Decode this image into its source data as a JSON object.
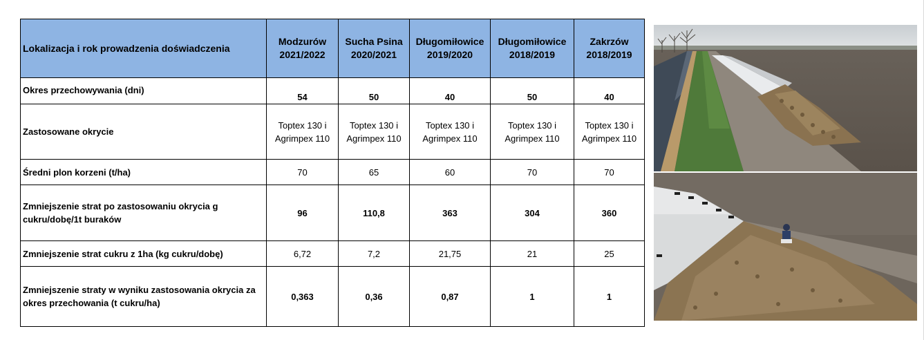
{
  "table": {
    "header_label": "Lokalizacja i rok prowadzenia doświadczenia",
    "columns": [
      {
        "name": "Modzurów",
        "years": "2021/2022"
      },
      {
        "name": "Sucha Psina",
        "years": "2020/2021"
      },
      {
        "name": "Długomiłowice",
        "years": "2019/2020"
      },
      {
        "name": "Długomiłowice",
        "years": "2018/2019"
      },
      {
        "name": "Zakrzów",
        "years": "2018/2019"
      }
    ],
    "rows": [
      {
        "label": "Okres przechowywania (dni)",
        "values": [
          "54",
          "50",
          "40",
          "50",
          "40"
        ]
      },
      {
        "label": "Zastosowane okrycie",
        "values": [
          "Toptex 130 i Agrimpex 110",
          "Toptex 130 i Agrimpex 110",
          "Toptex 130 i Agrimpex 110",
          "Toptex 130 i Agrimpex 110",
          "Toptex 130 i Agrimpex 110"
        ]
      },
      {
        "label": "Średni plon korzeni (t/ha)",
        "values": [
          "70",
          "65",
          "60",
          "70",
          "70"
        ]
      },
      {
        "label": "Zmniejszenie strat po zastosowaniu okrycia g cukru/dobę/1t buraków",
        "values": [
          "96",
          "110,8",
          "363",
          "304",
          "360"
        ]
      },
      {
        "label": "Zmniejszenie strat cukru z 1ha (kg cukru/dobę)",
        "values": [
          "6,72",
          "7,2",
          "21,75",
          "21",
          "25"
        ]
      },
      {
        "label": "Zmniejszenie straty w wyniku zastosowania okrycia za okres przechowania (t cukru/ha)",
        "values": [
          "0,363",
          "0,36",
          "0,87",
          "1",
          "1"
        ]
      }
    ]
  },
  "colors": {
    "header_bg": "#8eb4e3",
    "border": "#000000"
  }
}
